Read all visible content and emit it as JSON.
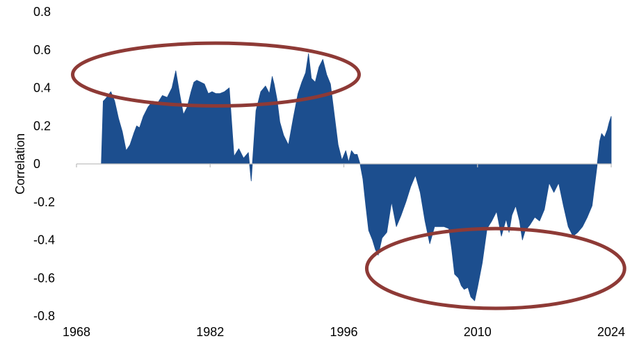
{
  "chart_data": {
    "type": "area",
    "title": "",
    "xlabel": "",
    "ylabel": "Correlation",
    "xlim": [
      1968,
      2024
    ],
    "ylim": [
      -0.8,
      0.8
    ],
    "x_ticks": [
      1968,
      1982,
      1996,
      2010,
      2024
    ],
    "x_tick_labels": [
      "1968",
      "1982",
      "1996",
      "2010",
      "2024"
    ],
    "y_ticks": [
      0.8,
      0.6,
      0.4,
      0.2,
      0,
      -0.2,
      -0.4,
      -0.6,
      -0.8
    ],
    "y_tick_labels": [
      "0.8",
      "0.6",
      "0.4",
      "0.2",
      "0",
      "-0.2",
      "-0.4",
      "-0.6",
      "-0.8"
    ],
    "grid": false,
    "legend": "none",
    "colors": {
      "fill": "#1c4e8e",
      "annotation": "#8e3a36",
      "axis": "#bfbfbf"
    },
    "series": [
      {
        "x": [
          1970.6,
          1970.8,
          1971.0,
          1971.3,
          1971.6,
          1972.0,
          1972.4,
          1972.8,
          1973.2,
          1973.6,
          1974.0,
          1974.3,
          1974.6,
          1975.0,
          1975.5,
          1976.0,
          1976.5,
          1977.0,
          1977.5,
          1978.0,
          1978.4,
          1978.8,
          1979.2,
          1979.6,
          1980.0,
          1980.3,
          1980.6,
          1981.0,
          1981.4,
          1981.8,
          1982.2,
          1982.6,
          1983.0,
          1983.5,
          1984.0,
          1984.5,
          1985.0,
          1985.5,
          1986.0,
          1986.3,
          1986.8,
          1987.3,
          1987.8,
          1988.2,
          1988.5,
          1988.7,
          1989.0,
          1989.3,
          1989.7,
          1990.2,
          1990.7,
          1991.2,
          1991.6,
          1992.0,
          1992.3,
          1992.6,
          1993.0,
          1993.4,
          1993.8,
          1994.2,
          1994.6,
          1995.0,
          1995.4,
          1995.8,
          1996.2,
          1996.5,
          1996.8,
          1997.1,
          1997.4,
          1997.7,
          1998.0,
          1998.3,
          1998.6,
          1999.0,
          1999.3,
          1999.6,
          2000.0,
          2000.5,
          2001.0,
          2001.5,
          2002.0,
          2002.5,
          2003.0,
          2003.5,
          2004.0,
          2004.5,
          2005.0,
          2005.5,
          2006.0,
          2006.5,
          2007.0,
          2007.3,
          2007.6,
          2008.0,
          2008.3,
          2008.6,
          2009.0,
          2009.3,
          2009.7,
          2010.0,
          2010.5,
          2011.0,
          2011.5,
          2012.0,
          2012.5,
          2013.0,
          2013.3,
          2013.6,
          2014.0,
          2014.4,
          2014.7,
          2015.0,
          2015.5,
          2016.0,
          2016.5,
          2017.0,
          2017.5,
          2018.0,
          2018.5,
          2019.0,
          2019.5,
          2020.0,
          2020.5,
          2021.0,
          2021.5,
          2022.0,
          2022.5,
          2022.8,
          2023.0,
          2023.3,
          2023.6,
          2023.8,
          2024.0
        ],
        "y": [
          0.0,
          0.33,
          0.34,
          0.36,
          0.38,
          0.33,
          0.24,
          0.17,
          0.07,
          0.1,
          0.16,
          0.2,
          0.19,
          0.25,
          0.3,
          0.33,
          0.32,
          0.36,
          0.35,
          0.4,
          0.49,
          0.37,
          0.26,
          0.3,
          0.38,
          0.43,
          0.44,
          0.43,
          0.42,
          0.37,
          0.38,
          0.37,
          0.37,
          0.38,
          0.4,
          0.04,
          0.08,
          0.03,
          0.06,
          -0.09,
          0.28,
          0.38,
          0.41,
          0.37,
          0.46,
          0.42,
          0.34,
          0.22,
          0.15,
          0.1,
          0.24,
          0.37,
          0.43,
          0.48,
          0.58,
          0.45,
          0.43,
          0.51,
          0.55,
          0.47,
          0.42,
          0.26,
          0.1,
          0.02,
          0.07,
          0.01,
          0.07,
          0.05,
          0.05,
          0.0,
          -0.08,
          -0.22,
          -0.35,
          -0.4,
          -0.45,
          -0.48,
          -0.39,
          -0.36,
          -0.2,
          -0.33,
          -0.27,
          -0.2,
          -0.12,
          -0.06,
          -0.15,
          -0.3,
          -0.42,
          -0.33,
          -0.33,
          -0.33,
          -0.34,
          -0.45,
          -0.58,
          -0.6,
          -0.64,
          -0.66,
          -0.65,
          -0.7,
          -0.72,
          -0.65,
          -0.52,
          -0.34,
          -0.3,
          -0.25,
          -0.38,
          -0.29,
          -0.36,
          -0.27,
          -0.22,
          -0.3,
          -0.4,
          -0.35,
          -0.32,
          -0.28,
          -0.3,
          -0.24,
          -0.1,
          -0.15,
          -0.1,
          -0.22,
          -0.33,
          -0.38,
          -0.36,
          -0.33,
          -0.28,
          -0.22,
          -0.02,
          0.12,
          0.16,
          0.14,
          0.18,
          0.22,
          0.25
        ]
      }
    ],
    "annotations": [
      {
        "type": "ellipse",
        "cx": 1982.6,
        "cy": 0.47,
        "rx": 15.0,
        "ry": 0.165
      },
      {
        "type": "ellipse",
        "cx": 2011.9,
        "cy": -0.55,
        "rx": 13.5,
        "ry": 0.21
      }
    ]
  }
}
